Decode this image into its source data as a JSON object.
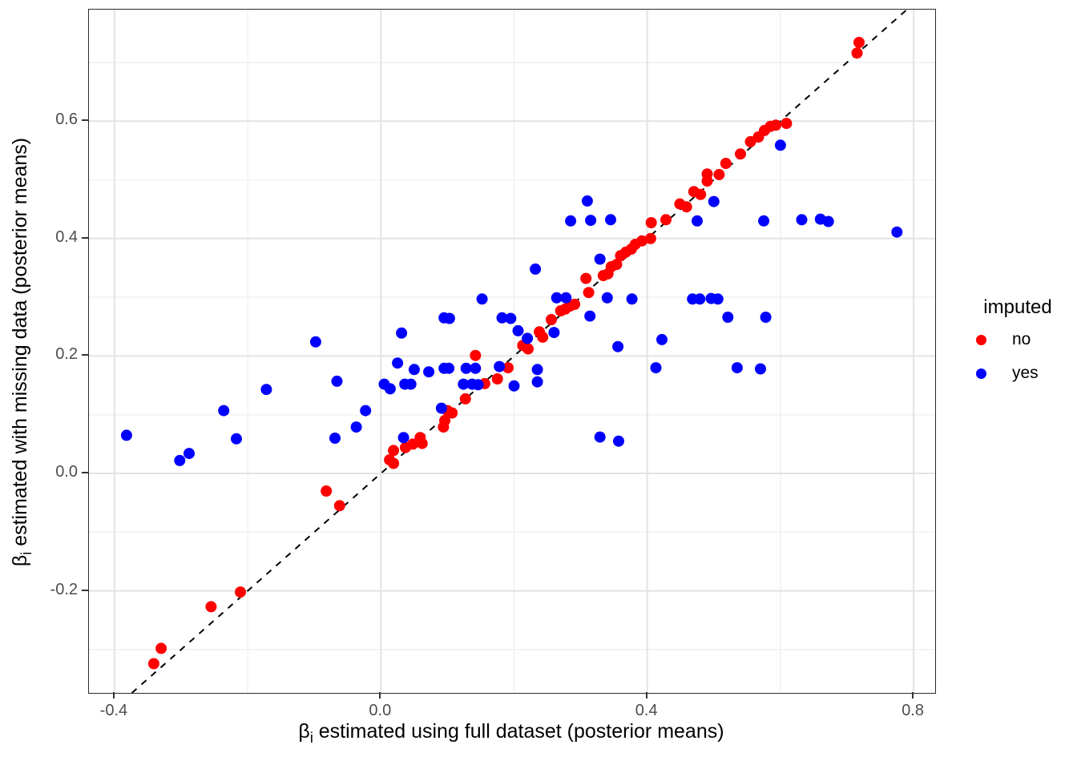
{
  "chart_data": {
    "type": "scatter",
    "title": "",
    "xlabel": {
      "beta": "β",
      "sub": "i",
      "rest": " estimated using full dataset (posterior means)"
    },
    "ylabel": {
      "beta": "β",
      "sub": "i",
      "rest": " estimated with missing data (posterior means)"
    },
    "xlim": [
      -0.438,
      0.832
    ],
    "ylim": [
      -0.374,
      0.79
    ],
    "x_ticks": {
      "labels": [
        "-0.4",
        "0.0",
        "0.4",
        "0.8"
      ],
      "values": [
        -0.4,
        0.0,
        0.4,
        0.8
      ]
    },
    "y_ticks": {
      "labels": [
        "0.6",
        "0.4",
        "0.2",
        "0.0",
        "-0.2"
      ],
      "values": [
        0.6,
        0.4,
        0.2,
        0.0,
        -0.2
      ]
    },
    "x_minor": [
      -0.2,
      0.2,
      0.6
    ],
    "y_minor": [
      -0.3,
      -0.1,
      0.1,
      0.3,
      0.5,
      0.7
    ],
    "grid": {
      "on": true,
      "major_color": "#E3E3E3",
      "minor_color": "#F2F2F2"
    },
    "reference_line": {
      "style": "dashed",
      "equation": "y = x",
      "color": "#000000"
    },
    "legend": {
      "title": "imputed",
      "position": "right",
      "items": [
        {
          "label": "no",
          "color": "#FF0000"
        },
        {
          "label": "yes",
          "color": "#0000FF"
        }
      ]
    },
    "series": [
      {
        "name": "no",
        "color": "#FF0000",
        "points": [
          [
            -0.341,
            -0.324
          ],
          [
            -0.33,
            -0.298
          ],
          [
            -0.255,
            -0.227
          ],
          [
            -0.211,
            -0.202
          ],
          [
            -0.082,
            -0.03
          ],
          [
            -0.062,
            -0.055
          ],
          [
            0.013,
            0.023
          ],
          [
            0.019,
            0.017
          ],
          [
            0.019,
            0.039
          ],
          [
            0.037,
            0.044
          ],
          [
            0.048,
            0.05
          ],
          [
            0.059,
            0.061
          ],
          [
            0.062,
            0.051
          ],
          [
            0.094,
            0.079
          ],
          [
            0.096,
            0.09
          ],
          [
            0.1,
            0.107
          ],
          [
            0.107,
            0.103
          ],
          [
            0.127,
            0.127
          ],
          [
            0.142,
            0.201
          ],
          [
            0.156,
            0.153
          ],
          [
            0.175,
            0.161
          ],
          [
            0.191,
            0.18
          ],
          [
            0.213,
            0.218
          ],
          [
            0.221,
            0.212
          ],
          [
            0.238,
            0.241
          ],
          [
            0.243,
            0.232
          ],
          [
            0.256,
            0.262
          ],
          [
            0.27,
            0.277
          ],
          [
            0.277,
            0.28
          ],
          [
            0.284,
            0.285
          ],
          [
            0.291,
            0.288
          ],
          [
            0.308,
            0.332
          ],
          [
            0.312,
            0.308
          ],
          [
            0.334,
            0.337
          ],
          [
            0.341,
            0.34
          ],
          [
            0.346,
            0.352
          ],
          [
            0.354,
            0.356
          ],
          [
            0.36,
            0.371
          ],
          [
            0.368,
            0.377
          ],
          [
            0.376,
            0.382
          ],
          [
            0.382,
            0.39
          ],
          [
            0.392,
            0.396
          ],
          [
            0.405,
            0.4
          ],
          [
            0.406,
            0.427
          ],
          [
            0.428,
            0.432
          ],
          [
            0.449,
            0.459
          ],
          [
            0.459,
            0.454
          ],
          [
            0.47,
            0.48
          ],
          [
            0.48,
            0.475
          ],
          [
            0.49,
            0.51
          ],
          [
            0.49,
            0.498
          ],
          [
            0.508,
            0.509
          ],
          [
            0.518,
            0.528
          ],
          [
            0.54,
            0.544
          ],
          [
            0.555,
            0.565
          ],
          [
            0.567,
            0.573
          ],
          [
            0.576,
            0.584
          ],
          [
            0.585,
            0.591
          ],
          [
            0.593,
            0.593
          ],
          [
            0.609,
            0.596
          ],
          [
            0.715,
            0.716
          ],
          [
            0.718,
            0.734
          ]
        ]
      },
      {
        "name": "yes",
        "color": "#0000FF",
        "points": [
          [
            -0.382,
            0.065
          ],
          [
            -0.302,
            0.022
          ],
          [
            -0.288,
            0.034
          ],
          [
            -0.236,
            0.107
          ],
          [
            -0.217,
            0.059
          ],
          [
            -0.172,
            0.143
          ],
          [
            -0.098,
            0.224
          ],
          [
            -0.069,
            0.06
          ],
          [
            -0.066,
            0.157
          ],
          [
            -0.037,
            0.079
          ],
          [
            -0.023,
            0.107
          ],
          [
            0.005,
            0.152
          ],
          [
            0.014,
            0.144
          ],
          [
            0.025,
            0.188
          ],
          [
            0.031,
            0.239
          ],
          [
            0.034,
            0.061
          ],
          [
            0.036,
            0.152
          ],
          [
            0.045,
            0.152
          ],
          [
            0.05,
            0.177
          ],
          [
            0.072,
            0.173
          ],
          [
            0.091,
            0.111
          ],
          [
            0.095,
            0.179
          ],
          [
            0.095,
            0.265
          ],
          [
            0.102,
            0.179
          ],
          [
            0.103,
            0.264
          ],
          [
            0.124,
            0.152
          ],
          [
            0.128,
            0.179
          ],
          [
            0.137,
            0.152
          ],
          [
            0.142,
            0.179
          ],
          [
            0.146,
            0.151
          ],
          [
            0.152,
            0.297
          ],
          [
            0.178,
            0.182
          ],
          [
            0.182,
            0.265
          ],
          [
            0.195,
            0.264
          ],
          [
            0.2,
            0.149
          ],
          [
            0.206,
            0.243
          ],
          [
            0.22,
            0.23
          ],
          [
            0.232,
            0.348
          ],
          [
            0.235,
            0.177
          ],
          [
            0.235,
            0.156
          ],
          [
            0.26,
            0.24
          ],
          [
            0.264,
            0.299
          ],
          [
            0.278,
            0.299
          ],
          [
            0.285,
            0.43
          ],
          [
            0.31,
            0.464
          ],
          [
            0.314,
            0.268
          ],
          [
            0.315,
            0.431
          ],
          [
            0.329,
            0.062
          ],
          [
            0.329,
            0.365
          ],
          [
            0.34,
            0.299
          ],
          [
            0.345,
            0.432
          ],
          [
            0.356,
            0.216
          ],
          [
            0.357,
            0.055
          ],
          [
            0.377,
            0.297
          ],
          [
            0.413,
            0.18
          ],
          [
            0.422,
            0.228
          ],
          [
            0.468,
            0.297
          ],
          [
            0.475,
            0.43
          ],
          [
            0.479,
            0.297
          ],
          [
            0.496,
            0.298
          ],
          [
            0.5,
            0.463
          ],
          [
            0.506,
            0.297
          ],
          [
            0.521,
            0.266
          ],
          [
            0.535,
            0.18
          ],
          [
            0.57,
            0.178
          ],
          [
            0.575,
            0.43
          ],
          [
            0.578,
            0.266
          ],
          [
            0.6,
            0.559
          ],
          [
            0.632,
            0.432
          ],
          [
            0.66,
            0.433
          ],
          [
            0.672,
            0.429
          ],
          [
            0.775,
            0.411
          ]
        ]
      }
    ]
  }
}
